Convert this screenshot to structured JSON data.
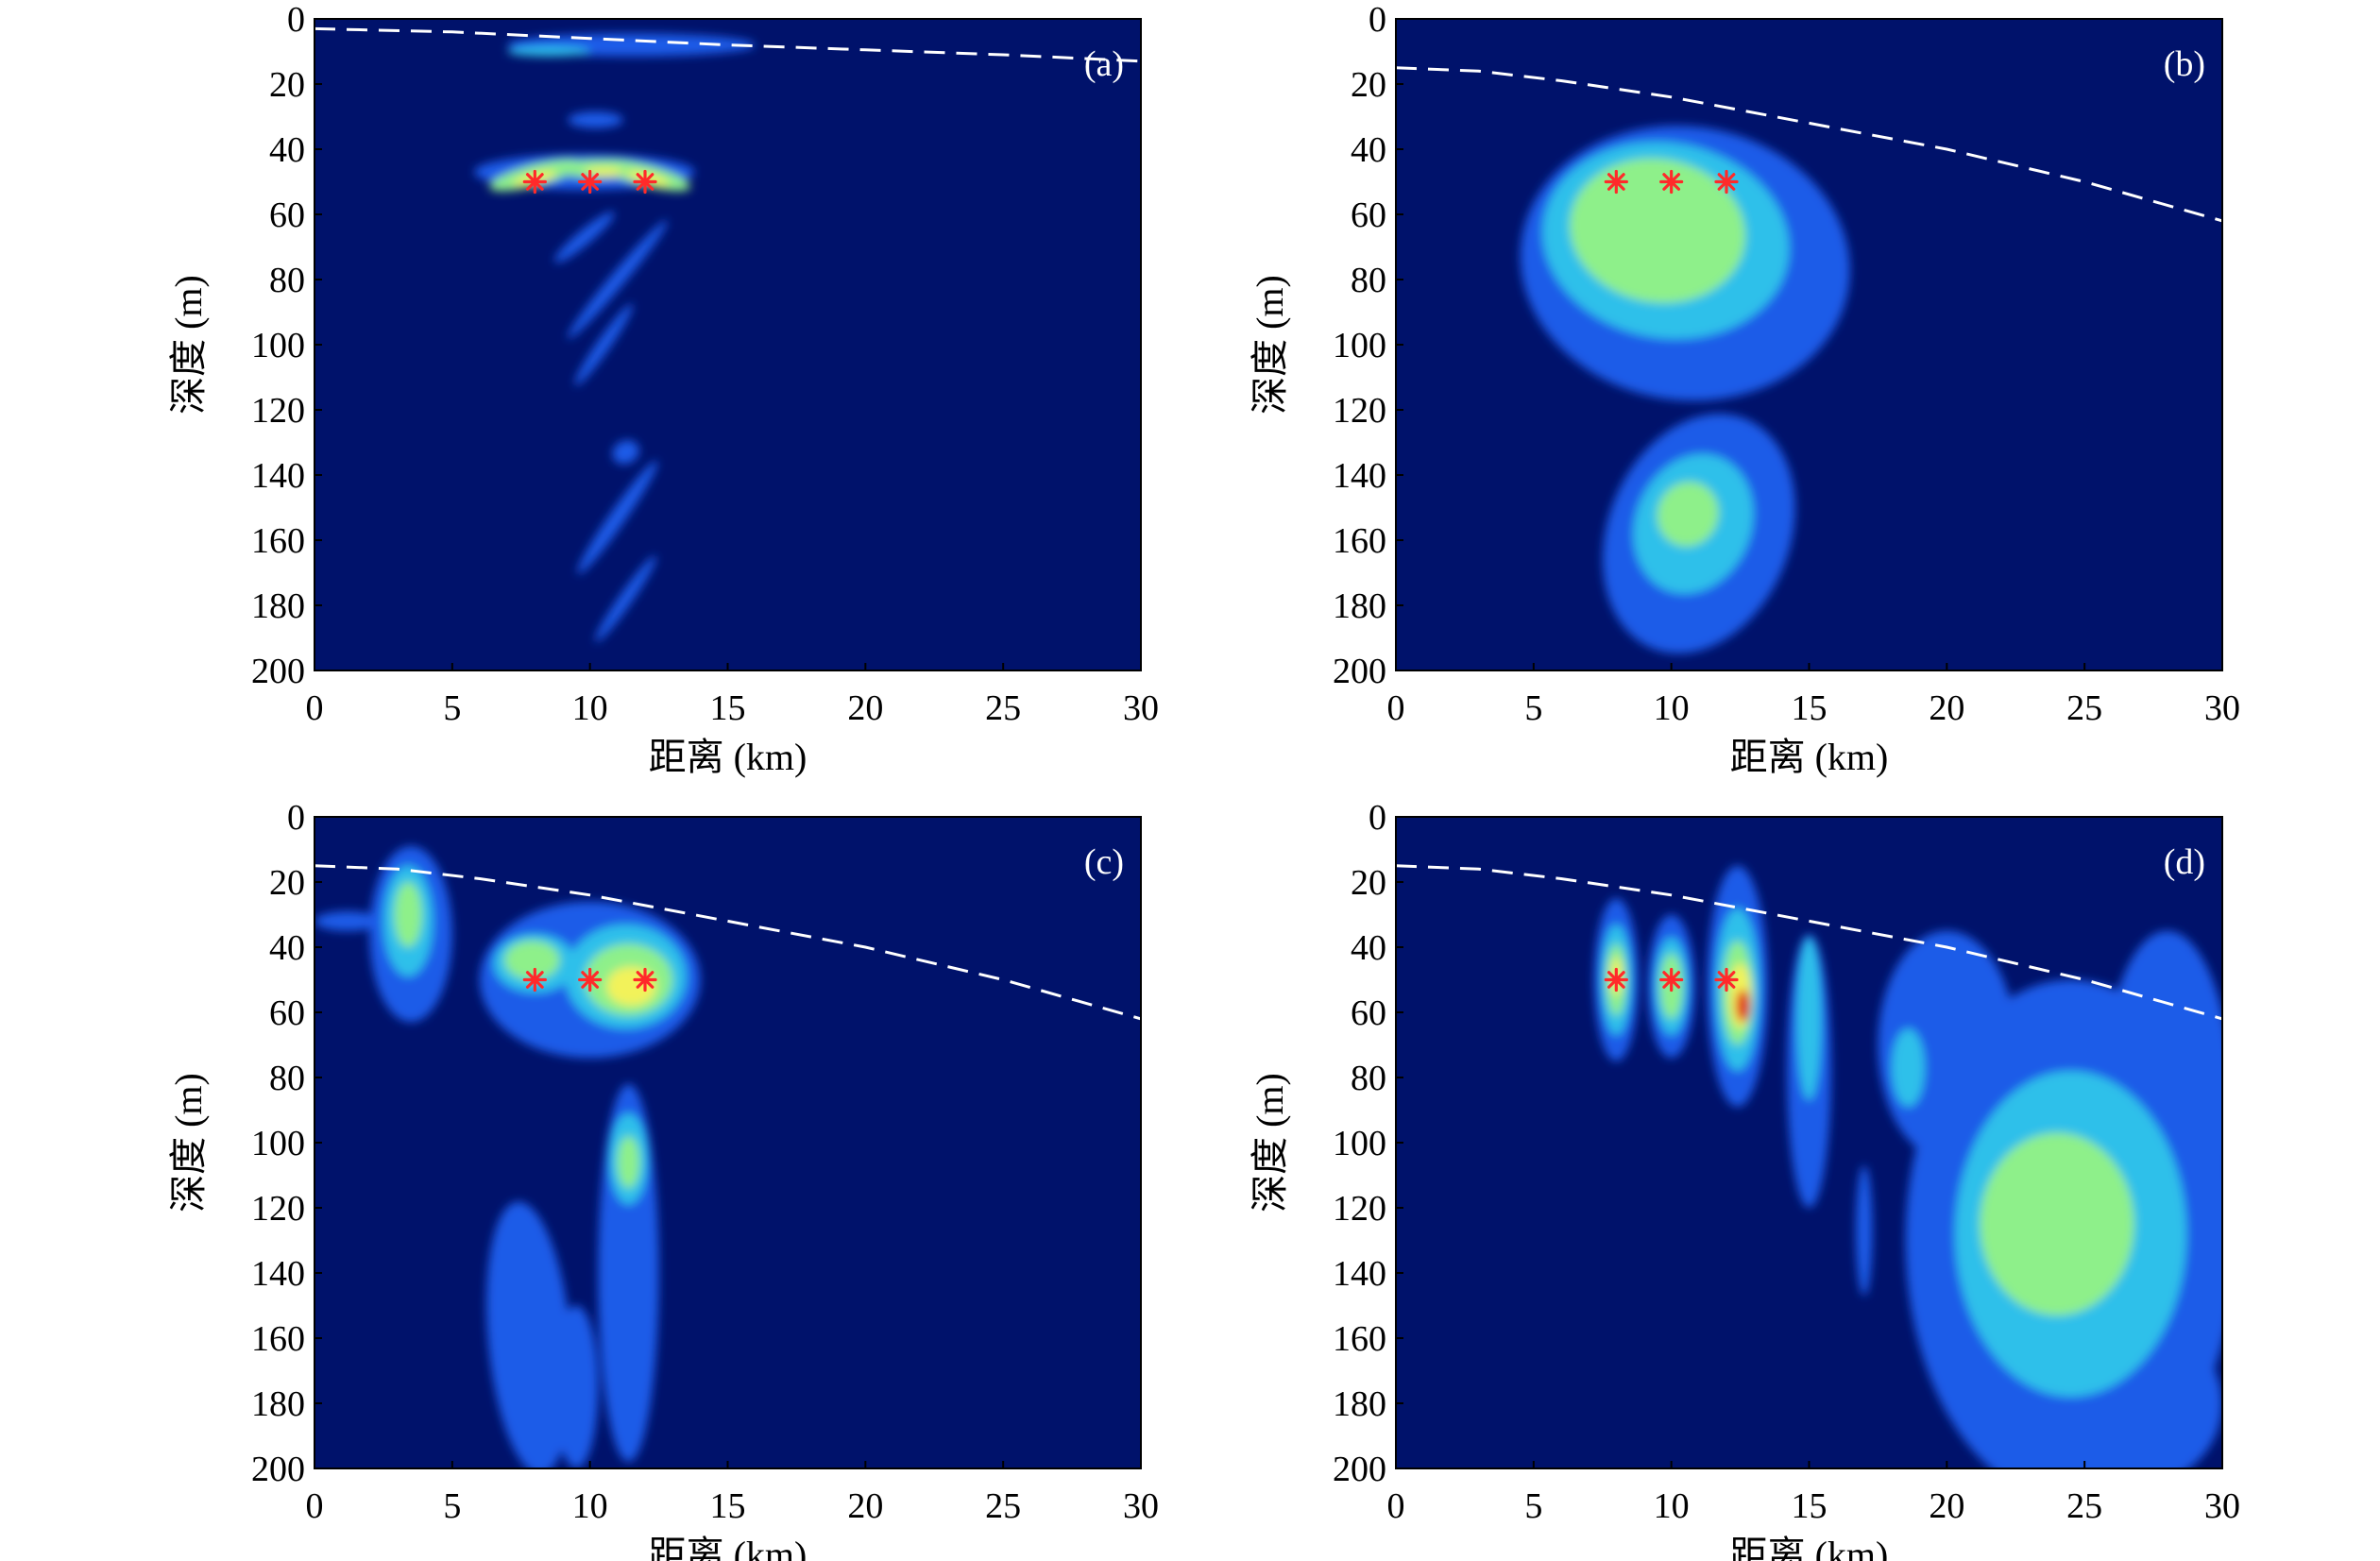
{
  "colors": {
    "background": "#00126b",
    "blue": "#1f5ce8",
    "cyan": "#2fc0ea",
    "green": "#8ef08a",
    "yellow": "#f2f25a",
    "red": "#e01010",
    "marker": "#ff2a2a",
    "dashed_line": "#ffffff"
  },
  "chart_data": [
    {
      "type": "heatmap",
      "panel_label": "(a)",
      "xlabel": "距离 (km)",
      "ylabel": "深度 (m)",
      "xlim": [
        0,
        30
      ],
      "ylim": [
        0,
        200
      ],
      "y_inverted": true,
      "xticks": [
        0,
        5,
        10,
        15,
        20,
        25,
        30
      ],
      "yticks": [
        0,
        20,
        40,
        60,
        80,
        100,
        120,
        140,
        160,
        180,
        200
      ],
      "sources": [
        {
          "x": 8,
          "y": 50
        },
        {
          "x": 10,
          "y": 50
        },
        {
          "x": 12,
          "y": 50
        }
      ],
      "dashed_curve": [
        {
          "x": 0,
          "y": 3
        },
        {
          "x": 5,
          "y": 4
        },
        {
          "x": 10,
          "y": 6
        },
        {
          "x": 15,
          "y": 8
        },
        {
          "x": 20,
          "y": 9.5
        },
        {
          "x": 25,
          "y": 11
        },
        {
          "x": 30,
          "y": 13
        }
      ],
      "blobs": [
        {
          "x": 11.5,
          "y": 8,
          "rx": 4.5,
          "ry": 3.5,
          "angle": 0,
          "level": "blue"
        },
        {
          "x": 8.5,
          "y": 10,
          "rx": 1.5,
          "ry": 1.5,
          "angle": 0,
          "level": "cyan"
        },
        {
          "x": 9.8,
          "y": 47,
          "rx": 4.0,
          "ry": 5.5,
          "angle": 0,
          "level": "blue"
        },
        {
          "x": 8.0,
          "y": 48,
          "rx": 1.7,
          "ry": 3.2,
          "angle": 15,
          "level": "green"
        },
        {
          "x": 10.4,
          "y": 46,
          "rx": 1.6,
          "ry": 2.8,
          "angle": 0,
          "level": "green"
        },
        {
          "x": 12.0,
          "y": 48,
          "rx": 1.7,
          "ry": 3.2,
          "angle": -15,
          "level": "green"
        },
        {
          "x": 8.0,
          "y": 49,
          "rx": 0.8,
          "ry": 1.5,
          "angle": 15,
          "level": "yellow"
        },
        {
          "x": 10.5,
          "y": 47,
          "rx": 0.7,
          "ry": 1.3,
          "angle": 0,
          "level": "yellow"
        },
        {
          "x": 12.1,
          "y": 49,
          "rx": 0.8,
          "ry": 1.5,
          "angle": -15,
          "level": "yellow"
        },
        {
          "x": 10.2,
          "y": 31,
          "rx": 1.0,
          "ry": 2.5,
          "angle": 0,
          "level": "blue"
        },
        {
          "x": 11.0,
          "y": 80,
          "rx": 2.8,
          "ry": 2.2,
          "angle": 50,
          "level": "blue"
        },
        {
          "x": 9.8,
          "y": 67,
          "rx": 1.4,
          "ry": 2.2,
          "angle": 40,
          "level": "blue"
        },
        {
          "x": 10.5,
          "y": 100,
          "rx": 1.8,
          "ry": 2.0,
          "angle": 55,
          "level": "blue"
        },
        {
          "x": 11.3,
          "y": 133,
          "rx": 0.5,
          "ry": 3.5,
          "angle": 25,
          "level": "blue"
        },
        {
          "x": 11.0,
          "y": 153,
          "rx": 2.5,
          "ry": 2.4,
          "angle": 55,
          "level": "blue"
        },
        {
          "x": 11.3,
          "y": 178,
          "rx": 1.9,
          "ry": 2.0,
          "angle": 55,
          "level": "blue"
        }
      ]
    },
    {
      "type": "heatmap",
      "panel_label": "(b)",
      "xlabel": "距离 (km)",
      "ylabel": "深度 (m)",
      "xlim": [
        0,
        30
      ],
      "ylim": [
        0,
        200
      ],
      "y_inverted": true,
      "xticks": [
        0,
        5,
        10,
        15,
        20,
        25,
        30
      ],
      "yticks": [
        0,
        20,
        40,
        60,
        80,
        100,
        120,
        140,
        160,
        180,
        200
      ],
      "sources": [
        {
          "x": 8,
          "y": 50
        },
        {
          "x": 10,
          "y": 50
        },
        {
          "x": 12,
          "y": 50
        }
      ],
      "dashed_curve": [
        {
          "x": 0,
          "y": 15
        },
        {
          "x": 3,
          "y": 16
        },
        {
          "x": 6,
          "y": 19
        },
        {
          "x": 10,
          "y": 24
        },
        {
          "x": 15,
          "y": 32
        },
        {
          "x": 20,
          "y": 40
        },
        {
          "x": 25,
          "y": 50
        },
        {
          "x": 30,
          "y": 62
        }
      ],
      "blobs": [
        {
          "x": 10.5,
          "y": 75,
          "rx": 6.0,
          "ry": 42,
          "angle": -8,
          "level": "blue"
        },
        {
          "x": 9.8,
          "y": 68,
          "rx": 4.5,
          "ry": 30,
          "angle": -10,
          "level": "cyan"
        },
        {
          "x": 9.5,
          "y": 65,
          "rx": 3.2,
          "ry": 22,
          "angle": -10,
          "level": "green"
        },
        {
          "x": 11.0,
          "y": 158,
          "rx": 3.3,
          "ry": 38,
          "angle": -22,
          "level": "blue"
        },
        {
          "x": 10.8,
          "y": 155,
          "rx": 2.1,
          "ry": 22,
          "angle": -22,
          "level": "cyan"
        },
        {
          "x": 10.6,
          "y": 152,
          "rx": 1.1,
          "ry": 10,
          "angle": -22,
          "level": "green"
        }
      ]
    },
    {
      "type": "heatmap",
      "panel_label": "(c)",
      "xlabel": "距离 (km)",
      "ylabel": "深度 (m)",
      "xlim": [
        0,
        30
      ],
      "ylim": [
        0,
        200
      ],
      "y_inverted": true,
      "xticks": [
        0,
        5,
        10,
        15,
        20,
        25,
        30
      ],
      "yticks": [
        0,
        20,
        40,
        60,
        80,
        100,
        120,
        140,
        160,
        180,
        200
      ],
      "sources": [
        {
          "x": 8,
          "y": 50
        },
        {
          "x": 10,
          "y": 50
        },
        {
          "x": 12,
          "y": 50
        }
      ],
      "dashed_curve": [
        {
          "x": 0,
          "y": 15
        },
        {
          "x": 3,
          "y": 16
        },
        {
          "x": 6,
          "y": 19
        },
        {
          "x": 10,
          "y": 24
        },
        {
          "x": 15,
          "y": 32
        },
        {
          "x": 20,
          "y": 40
        },
        {
          "x": 25,
          "y": 50
        },
        {
          "x": 30,
          "y": 62
        }
      ],
      "blobs": [
        {
          "x": 3.5,
          "y": 36,
          "rx": 1.5,
          "ry": 27,
          "angle": 0,
          "level": "blue"
        },
        {
          "x": 1.2,
          "y": 32,
          "rx": 1.2,
          "ry": 3,
          "angle": 0,
          "level": "blue"
        },
        {
          "x": 3.4,
          "y": 32,
          "rx": 0.9,
          "ry": 17,
          "angle": 0,
          "level": "cyan"
        },
        {
          "x": 3.4,
          "y": 30,
          "rx": 0.5,
          "ry": 10,
          "angle": 0,
          "level": "green"
        },
        {
          "x": 10.0,
          "y": 50,
          "rx": 4.0,
          "ry": 24,
          "angle": 0,
          "level": "blue"
        },
        {
          "x": 11.3,
          "y": 49,
          "rx": 2.2,
          "ry": 16,
          "angle": 0,
          "level": "cyan"
        },
        {
          "x": 8.0,
          "y": 45,
          "rx": 1.5,
          "ry": 9,
          "angle": 0,
          "level": "cyan"
        },
        {
          "x": 11.4,
          "y": 50,
          "rx": 1.6,
          "ry": 11,
          "angle": 0,
          "level": "green"
        },
        {
          "x": 7.9,
          "y": 44,
          "rx": 1.0,
          "ry": 6,
          "angle": 0,
          "level": "green"
        },
        {
          "x": 11.5,
          "y": 52,
          "rx": 0.9,
          "ry": 6,
          "angle": 0,
          "level": "yellow"
        },
        {
          "x": 11.4,
          "y": 140,
          "rx": 1.1,
          "ry": 58,
          "angle": 0,
          "level": "blue"
        },
        {
          "x": 11.4,
          "y": 105,
          "rx": 0.7,
          "ry": 14,
          "angle": 0,
          "level": "cyan"
        },
        {
          "x": 11.4,
          "y": 106,
          "rx": 0.4,
          "ry": 8,
          "angle": 0,
          "level": "green"
        },
        {
          "x": 7.8,
          "y": 160,
          "rx": 1.5,
          "ry": 42,
          "angle": 5,
          "level": "blue"
        },
        {
          "x": 9.5,
          "y": 175,
          "rx": 0.8,
          "ry": 25,
          "angle": 0,
          "level": "blue"
        }
      ]
    },
    {
      "type": "heatmap",
      "panel_label": "(d)",
      "xlabel": "距离 (km)",
      "ylabel": "深度 (m)",
      "xlim": [
        0,
        30
      ],
      "ylim": [
        0,
        200
      ],
      "y_inverted": true,
      "xticks": [
        0,
        5,
        10,
        15,
        20,
        25,
        30
      ],
      "yticks": [
        0,
        20,
        40,
        60,
        80,
        100,
        120,
        140,
        160,
        180,
        200
      ],
      "sources": [
        {
          "x": 8,
          "y": 50
        },
        {
          "x": 10,
          "y": 50
        },
        {
          "x": 12,
          "y": 50
        }
      ],
      "dashed_curve": [
        {
          "x": 0,
          "y": 15
        },
        {
          "x": 3,
          "y": 16
        },
        {
          "x": 6,
          "y": 19
        },
        {
          "x": 10,
          "y": 24
        },
        {
          "x": 15,
          "y": 32
        },
        {
          "x": 20,
          "y": 40
        },
        {
          "x": 25,
          "y": 50
        },
        {
          "x": 30,
          "y": 62
        }
      ],
      "blobs": [
        {
          "x": 24.5,
          "y": 130,
          "rx": 6.0,
          "ry": 80,
          "angle": 0,
          "level": "blue"
        },
        {
          "x": 20.0,
          "y": 70,
          "rx": 2.5,
          "ry": 35,
          "angle": 0,
          "level": "blue"
        },
        {
          "x": 28.0,
          "y": 90,
          "rx": 2.4,
          "ry": 55,
          "angle": 0,
          "level": "blue"
        },
        {
          "x": 27.0,
          "y": 180,
          "rx": 3.0,
          "ry": 25,
          "angle": 0,
          "level": "blue"
        },
        {
          "x": 24.5,
          "y": 128,
          "rx": 4.2,
          "ry": 50,
          "angle": 0,
          "level": "cyan"
        },
        {
          "x": 24.0,
          "y": 125,
          "rx": 2.8,
          "ry": 28,
          "angle": 0,
          "level": "green"
        },
        {
          "x": 18.6,
          "y": 77,
          "rx": 0.6,
          "ry": 12,
          "angle": 0,
          "level": "cyan"
        },
        {
          "x": 17.0,
          "y": 127,
          "rx": 0.3,
          "ry": 20,
          "angle": 0,
          "level": "blue"
        },
        {
          "x": 8.0,
          "y": 50,
          "rx": 0.8,
          "ry": 25,
          "angle": 0,
          "level": "blue"
        },
        {
          "x": 8.0,
          "y": 50,
          "rx": 0.55,
          "ry": 17,
          "angle": 0,
          "level": "cyan"
        },
        {
          "x": 8.0,
          "y": 50,
          "rx": 0.35,
          "ry": 11,
          "angle": 0,
          "level": "green"
        },
        {
          "x": 8.0,
          "y": 49,
          "rx": 0.2,
          "ry": 6,
          "angle": 0,
          "level": "yellow"
        },
        {
          "x": 10.0,
          "y": 52,
          "rx": 0.85,
          "ry": 22,
          "angle": 0,
          "level": "blue"
        },
        {
          "x": 10.0,
          "y": 52,
          "rx": 0.6,
          "ry": 15,
          "angle": 0,
          "level": "cyan"
        },
        {
          "x": 10.0,
          "y": 52,
          "rx": 0.4,
          "ry": 10,
          "angle": 0,
          "level": "green"
        },
        {
          "x": 12.4,
          "y": 52,
          "rx": 1.1,
          "ry": 37,
          "angle": 0,
          "level": "blue"
        },
        {
          "x": 12.4,
          "y": 53,
          "rx": 0.8,
          "ry": 25,
          "angle": 0,
          "level": "cyan"
        },
        {
          "x": 12.4,
          "y": 54,
          "rx": 0.55,
          "ry": 16,
          "angle": 0,
          "level": "green"
        },
        {
          "x": 12.5,
          "y": 55,
          "rx": 0.4,
          "ry": 10,
          "angle": 0,
          "level": "yellow"
        },
        {
          "x": 12.6,
          "y": 58,
          "rx": 0.25,
          "ry": 5,
          "angle": 0,
          "level": "red"
        },
        {
          "x": 15.0,
          "y": 78,
          "rx": 0.8,
          "ry": 42,
          "angle": 0,
          "level": "blue"
        },
        {
          "x": 15.0,
          "y": 62,
          "rx": 0.45,
          "ry": 25,
          "angle": 0,
          "level": "cyan"
        }
      ]
    }
  ]
}
